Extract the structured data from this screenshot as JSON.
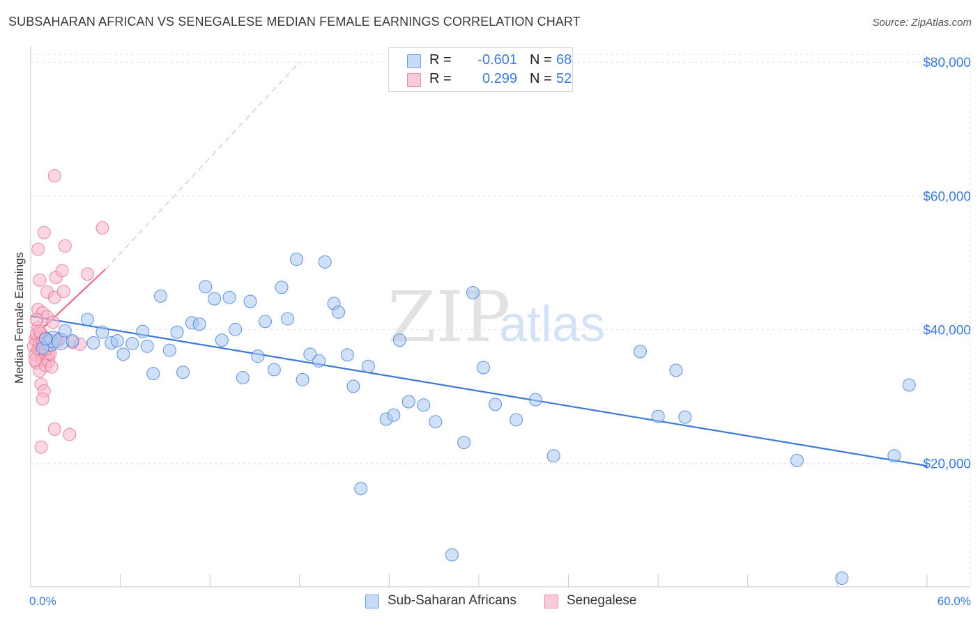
{
  "header": {
    "title": "SUBSAHARAN AFRICAN VS SENEGALESE MEDIAN FEMALE EARNINGS CORRELATION CHART",
    "source": "Source: ZipAtlas.com"
  },
  "legend": {
    "rows": [
      {
        "r_label": "R =",
        "r_value": "-0.601",
        "n_label": "N =",
        "n_value": "68"
      },
      {
        "r_label": "R =",
        "r_value": "0.299",
        "n_label": "N =",
        "n_value": "52"
      }
    ]
  },
  "watermark": {
    "zip": "ZIP",
    "atlas": "atlas"
  },
  "colors": {
    "blue": "#3b78d8",
    "blue_fill": "#aac8f0",
    "pink": "#e86a93",
    "pink_fill": "#f5b6c9",
    "accent_text": "#3d7bd9",
    "grid": "#e2e2e2"
  },
  "chart_data": {
    "type": "scatter",
    "title": "SUBSAHARAN AFRICAN VS SENEGALESE MEDIAN FEMALE EARNINGS CORRELATION CHART",
    "xlabel": "",
    "ylabel": "Median Female Earnings",
    "xlim": [
      0,
      60
    ],
    "ylim": [
      1500,
      82000
    ],
    "x_tick_labels": [
      "0.0%",
      "60.0%"
    ],
    "y_ticks": [
      20000,
      40000,
      60000,
      80000
    ],
    "y_tick_labels": [
      "$20,000",
      "$40,000",
      "$60,000",
      "$80,000"
    ],
    "grid": true,
    "legend_position": "top-center",
    "series": [
      {
        "name": "Sub-Saharan Africans",
        "color": "#3b78d8",
        "r": -0.601,
        "n": 68,
        "trend": {
          "x": [
            0,
            60
          ],
          "y": [
            42000,
            19600
          ],
          "style": "solid"
        },
        "points": [
          [
            1.3,
            38000
          ],
          [
            1.5,
            38500
          ],
          [
            2.0,
            38200
          ],
          [
            2.3,
            39800
          ],
          [
            2.8,
            38300
          ],
          [
            3.8,
            41500
          ],
          [
            4.2,
            38000
          ],
          [
            4.8,
            39600
          ],
          [
            5.4,
            38000
          ],
          [
            5.8,
            38300
          ],
          [
            6.2,
            36300
          ],
          [
            6.8,
            37900
          ],
          [
            7.5,
            39700
          ],
          [
            7.8,
            37500
          ],
          [
            8.2,
            33400
          ],
          [
            8.7,
            45000
          ],
          [
            9.3,
            36900
          ],
          [
            9.8,
            39600
          ],
          [
            10.2,
            33600
          ],
          [
            10.8,
            41000
          ],
          [
            11.3,
            40800
          ],
          [
            11.7,
            46400
          ],
          [
            12.3,
            44600
          ],
          [
            12.8,
            38400
          ],
          [
            13.3,
            44800
          ],
          [
            13.7,
            40000
          ],
          [
            14.2,
            32800
          ],
          [
            14.7,
            44200
          ],
          [
            15.2,
            36000
          ],
          [
            15.7,
            41200
          ],
          [
            16.3,
            34000
          ],
          [
            16.8,
            46300
          ],
          [
            17.2,
            41600
          ],
          [
            17.8,
            50500
          ],
          [
            18.2,
            32500
          ],
          [
            18.7,
            36300
          ],
          [
            19.3,
            35300
          ],
          [
            19.7,
            50100
          ],
          [
            20.3,
            43900
          ],
          [
            20.6,
            42600
          ],
          [
            21.2,
            36200
          ],
          [
            21.6,
            31500
          ],
          [
            22.1,
            16200
          ],
          [
            22.6,
            34500
          ],
          [
            23.8,
            26600
          ],
          [
            24.3,
            27200
          ],
          [
            24.7,
            38400
          ],
          [
            25.3,
            29200
          ],
          [
            26.3,
            28700
          ],
          [
            27.1,
            26200
          ],
          [
            28.2,
            6300
          ],
          [
            29.0,
            23100
          ],
          [
            29.6,
            45500
          ],
          [
            30.3,
            34300
          ],
          [
            31.1,
            28800
          ],
          [
            32.5,
            26500
          ],
          [
            33.8,
            29500
          ],
          [
            35.0,
            21100
          ],
          [
            40.8,
            36700
          ],
          [
            42.0,
            27000
          ],
          [
            43.2,
            33900
          ],
          [
            43.8,
            26900
          ],
          [
            51.3,
            20400
          ],
          [
            54.3,
            2800
          ],
          [
            57.8,
            21100
          ],
          [
            58.8,
            31700
          ],
          [
            0.8,
            37200
          ],
          [
            1.0,
            38600
          ]
        ]
      },
      {
        "name": "Senegalese",
        "color": "#e86a93",
        "r": 0.299,
        "n": 52,
        "trend": {
          "x": [
            0,
            5
          ],
          "y": [
            38500,
            49000
          ],
          "style": "solid",
          "extended_to": [
            18,
            80000
          ],
          "extended_style": "dashed"
        },
        "points": [
          [
            0.2,
            37500
          ],
          [
            0.3,
            38500
          ],
          [
            0.3,
            36200
          ],
          [
            0.4,
            39300
          ],
          [
            0.4,
            35000
          ],
          [
            0.5,
            37000
          ],
          [
            0.5,
            40300
          ],
          [
            0.5,
            43000
          ],
          [
            0.6,
            38000
          ],
          [
            0.6,
            33800
          ],
          [
            0.7,
            36800
          ],
          [
            0.7,
            39400
          ],
          [
            0.7,
            31800
          ],
          [
            0.8,
            38200
          ],
          [
            0.8,
            35500
          ],
          [
            0.8,
            42500
          ],
          [
            0.9,
            37800
          ],
          [
            0.9,
            30800
          ],
          [
            1.0,
            36400
          ],
          [
            1.0,
            34600
          ],
          [
            1.0,
            38700
          ],
          [
            1.1,
            45600
          ],
          [
            1.1,
            41900
          ],
          [
            1.2,
            36300
          ],
          [
            1.2,
            35300
          ],
          [
            1.3,
            38000
          ],
          [
            1.4,
            34400
          ],
          [
            1.5,
            41100
          ],
          [
            1.6,
            44800
          ],
          [
            1.7,
            47800
          ],
          [
            1.8,
            38200
          ],
          [
            1.9,
            38600
          ],
          [
            0.5,
            52000
          ],
          [
            0.9,
            54500
          ],
          [
            0.6,
            47400
          ],
          [
            0.8,
            29600
          ],
          [
            0.7,
            22400
          ],
          [
            1.6,
            25100
          ],
          [
            2.1,
            48800
          ],
          [
            2.2,
            45700
          ],
          [
            2.3,
            52500
          ],
          [
            2.6,
            24300
          ],
          [
            2.8,
            38100
          ],
          [
            3.3,
            37800
          ],
          [
            3.8,
            48300
          ],
          [
            4.8,
            55200
          ],
          [
            1.6,
            63000
          ],
          [
            0.4,
            41500
          ],
          [
            0.6,
            39700
          ],
          [
            1.3,
            36400
          ],
          [
            0.3,
            35400
          ],
          [
            1.0,
            37100
          ]
        ]
      }
    ]
  },
  "bottom_legend": {
    "items": [
      {
        "label": "Sub-Saharan Africans"
      },
      {
        "label": "Senegalese"
      }
    ]
  }
}
